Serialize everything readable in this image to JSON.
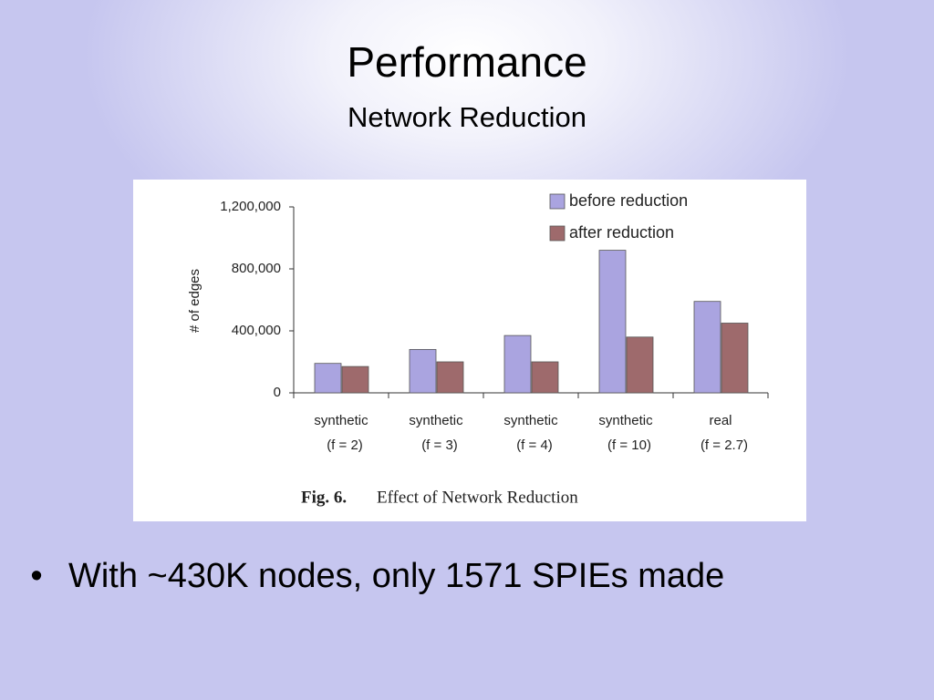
{
  "slide": {
    "title": "Performance",
    "subtitle": "Network Reduction",
    "bullets": [
      "With ~430K nodes, only 1571 SPIEs made"
    ]
  },
  "chart_data": {
    "type": "bar",
    "y_label": "# of edges",
    "caption": {
      "number": "Fig. 6.",
      "text": "Effect of Network Reduction"
    },
    "categories": [
      [
        "synthetic",
        "(f = 2)"
      ],
      [
        "synthetic",
        "(f = 3)"
      ],
      [
        "synthetic",
        "(f = 4)"
      ],
      [
        "synthetic",
        "(f = 10)"
      ],
      [
        "real",
        "(f = 2.7)"
      ]
    ],
    "series": [
      {
        "name": "before reduction",
        "color": "#aaa4e0",
        "values": [
          190000,
          280000,
          370000,
          920000,
          590000
        ]
      },
      {
        "name": "after reduction",
        "color": "#9e6a6c",
        "values": [
          170000,
          200000,
          200000,
          360000,
          450000
        ]
      }
    ],
    "ylim": [
      0,
      1200000
    ],
    "yticks": [
      0,
      {
        "value": 400000,
        "label": "400,000"
      },
      {
        "value": 800000,
        "label": "800,000"
      },
      {
        "value": 1200000,
        "label": "1,200,000"
      }
    ],
    "legend": "upper right",
    "grid": false
  }
}
